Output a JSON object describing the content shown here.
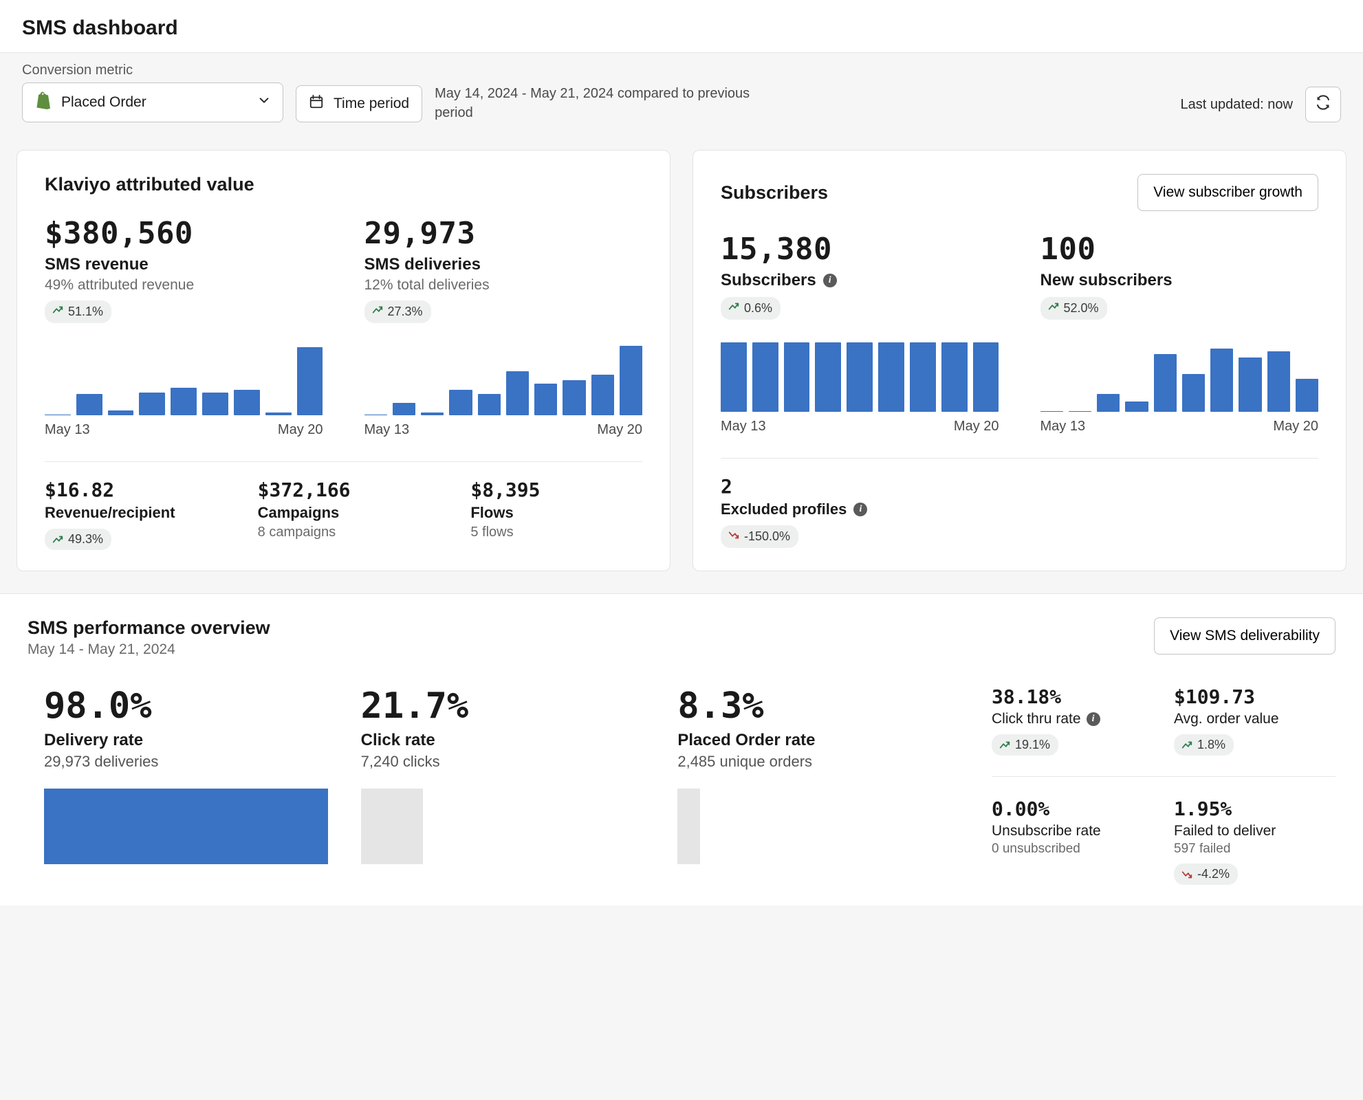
{
  "colors": {
    "bar_blue": "#3a72c4",
    "bar_grey": "#e5e5e5",
    "slope_grey": "#f1f1f1",
    "trend_up": "#2f7d4f",
    "trend_down": "#b93a3a",
    "chip_bg": "#edf0ee",
    "card_bg": "#ffffff",
    "page_bg": "#f6f6f7",
    "text_primary": "#1a1a1a",
    "text_muted": "#6a6a6a",
    "shopify_green": "#5e8e3e"
  },
  "header": {
    "title": "SMS dashboard"
  },
  "filters": {
    "metric_label": "Conversion metric",
    "metric_value": "Placed Order",
    "time_button": "Time period",
    "date_summary": "May 14, 2024 - May 21, 2024 compared to previous period",
    "last_updated_label": "Last updated: now"
  },
  "attributed": {
    "title": "Klaviyo attributed value",
    "revenue": {
      "value": "$380,560",
      "label": "SMS revenue",
      "sub": "49% attributed revenue",
      "trend": {
        "dir": "up",
        "text": "51.1%"
      },
      "chart": {
        "type": "bar",
        "values": [
          0,
          28,
          6,
          30,
          36,
          30,
          34,
          4,
          90
        ],
        "ymax": 100,
        "x_start": "May 13",
        "x_end": "May 20"
      }
    },
    "deliveries": {
      "value": "29,973",
      "label": "SMS deliveries",
      "sub": "12% total deliveries",
      "trend": {
        "dir": "up",
        "text": "27.3%"
      },
      "chart": {
        "type": "bar",
        "values": [
          0,
          16,
          4,
          34,
          28,
          58,
          42,
          46,
          54,
          92
        ],
        "ymax": 100,
        "x_start": "May 13",
        "x_end": "May 20"
      }
    },
    "substats": [
      {
        "value": "$16.82",
        "label": "Revenue/recipient",
        "trend": {
          "dir": "up",
          "text": "49.3%"
        }
      },
      {
        "value": "$372,166",
        "label": "Campaigns",
        "detail": "8 campaigns"
      },
      {
        "value": "$8,395",
        "label": "Flows",
        "detail": "5 flows"
      }
    ]
  },
  "subscribers": {
    "title": "Subscribers",
    "button": "View subscriber growth",
    "subs": {
      "value": "15,380",
      "label": "Subscribers",
      "trend": {
        "dir": "up",
        "text": "0.6%"
      },
      "chart": {
        "type": "bar",
        "values": [
          92,
          92,
          92,
          92,
          92,
          92,
          92,
          92,
          92
        ],
        "ymax": 100,
        "x_start": "May 13",
        "x_end": "May 20"
      }
    },
    "new": {
      "value": "100",
      "label": "New subscribers",
      "trend": {
        "dir": "up",
        "text": "52.0%"
      },
      "chart": {
        "type": "bar",
        "values": [
          0,
          0,
          24,
          14,
          76,
          50,
          84,
          72,
          80,
          44
        ],
        "ymax": 100,
        "x_start": "May 13",
        "x_end": "May 20"
      }
    },
    "excluded": {
      "value": "2",
      "label": "Excluded profiles",
      "trend": {
        "dir": "down",
        "text": "-150.0%"
      }
    }
  },
  "performance": {
    "title": "SMS performance overview",
    "date": "May 14 - May 21, 2024",
    "button": "View SMS deliverability",
    "funnel": [
      {
        "value": "98.0%",
        "label": "Delivery rate",
        "detail": "29,973 deliveries",
        "fill_pct": 100,
        "fill_color": "#3a72c4",
        "slope_to": 22
      },
      {
        "value": "21.7%",
        "label": "Click rate",
        "detail": "7,240 clicks",
        "fill_pct": 22,
        "fill_color": "#e5e5e5",
        "slope_to": 8
      },
      {
        "value": "8.3%",
        "label": "Placed Order rate",
        "detail": "2,485 unique orders",
        "fill_pct": 8,
        "fill_color": "#e5e5e5"
      }
    ],
    "side": {
      "row1": [
        {
          "value": "38.18%",
          "label": "Click thru rate",
          "info": true,
          "trend": {
            "dir": "up",
            "text": "19.1%"
          }
        },
        {
          "value": "$109.73",
          "label": "Avg. order value",
          "trend": {
            "dir": "up",
            "text": "1.8%"
          }
        }
      ],
      "row2": [
        {
          "value": "0.00%",
          "label": "Unsubscribe rate",
          "detail": "0 unsubscribed"
        },
        {
          "value": "1.95%",
          "label": "Failed to deliver",
          "detail": "597 failed",
          "trend": {
            "dir": "down",
            "text": "-4.2%"
          }
        }
      ]
    }
  }
}
